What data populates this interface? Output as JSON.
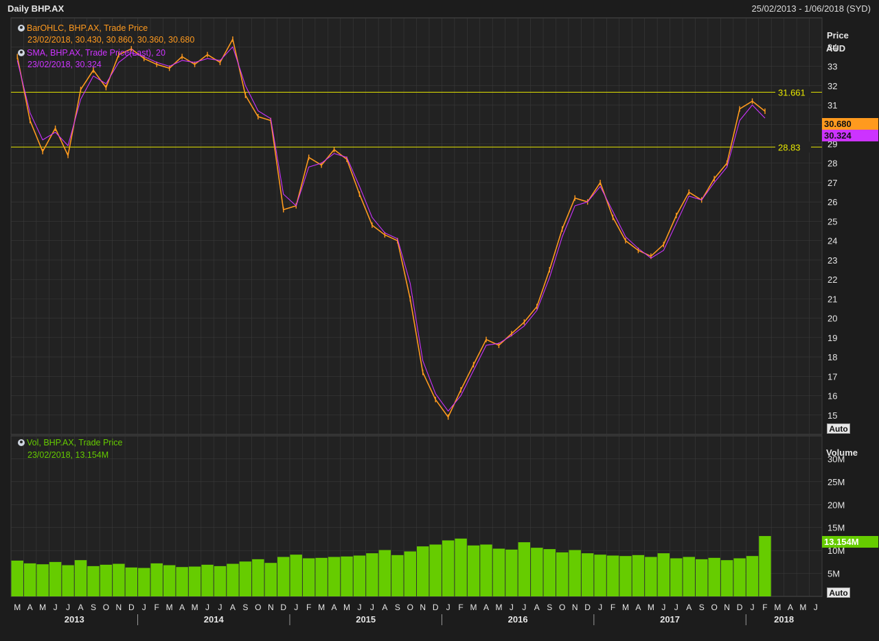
{
  "header": {
    "title": "Daily BHP.AX",
    "range": "25/02/2013 - 1/06/2018 (SYD)"
  },
  "colors": {
    "background": "#1c1c1c",
    "plot": "#222222",
    "grid": "#3a3a3a",
    "price": "#ff9a1e",
    "sma": "#cc33ff",
    "volume": "#66cc00",
    "hline": "#e8e800",
    "text": "#dcdcdc"
  },
  "legend": {
    "ohlc_title": "BarOHLC, BHP.AX, Trade Price",
    "ohlc_values": "23/02/2018, 30.430, 30.860, 30.360, 30.680",
    "sma_title": "SMA, BHP.AX, Trade Price(Last),  20",
    "sma_values": "23/02/2018, 30.324",
    "vol_title": "Vol, BHP.AX, Trade Price",
    "vol_values": "23/02/2018, 13.154M"
  },
  "price_axis": {
    "title": "Price",
    "unit": "AUD",
    "auto_label": "Auto"
  },
  "volume_axis": {
    "title": "Volume",
    "auto_label": "Auto"
  },
  "badges": {
    "last_price": "30.680",
    "sma": "30.324",
    "last_volume": "13.154M"
  },
  "hlines": [
    {
      "label": "31.661",
      "value": 31.661
    },
    {
      "label": "28.83",
      "value": 28.83
    }
  ],
  "chart_data": [
    {
      "type": "line",
      "x_unit": "month",
      "x": [
        "2013-03",
        "2013-04",
        "2013-05",
        "2013-06",
        "2013-07",
        "2013-08",
        "2013-09",
        "2013-10",
        "2013-11",
        "2013-12",
        "2014-01",
        "2014-02",
        "2014-03",
        "2014-04",
        "2014-05",
        "2014-06",
        "2014-07",
        "2014-08",
        "2014-09",
        "2014-10",
        "2014-11",
        "2014-12",
        "2015-01",
        "2015-02",
        "2015-03",
        "2015-04",
        "2015-05",
        "2015-06",
        "2015-07",
        "2015-08",
        "2015-09",
        "2015-10",
        "2015-11",
        "2015-12",
        "2016-01",
        "2016-02",
        "2016-03",
        "2016-04",
        "2016-05",
        "2016-06",
        "2016-07",
        "2016-08",
        "2016-09",
        "2016-10",
        "2016-11",
        "2016-12",
        "2017-01",
        "2017-02",
        "2017-03",
        "2017-04",
        "2017-05",
        "2017-06",
        "2017-07",
        "2017-08",
        "2017-09",
        "2017-10",
        "2017-11",
        "2017-12",
        "2018-01",
        "2018-02"
      ],
      "series": [
        {
          "values": [
            33.5,
            30.2,
            28.6,
            29.8,
            28.4,
            31.8,
            32.8,
            31.9,
            33.6,
            33.9,
            33.4,
            33.1,
            32.9,
            33.5,
            33.1,
            33.6,
            33.2,
            34.4,
            31.5,
            30.4,
            30.2,
            25.6,
            25.8,
            28.3,
            27.9,
            28.7,
            28.2,
            26.4,
            24.8,
            24.3,
            24.0,
            21.0,
            17.2,
            15.8,
            14.9,
            16.3,
            17.6,
            18.9,
            18.6,
            19.2,
            19.8,
            20.6,
            22.5,
            24.6,
            26.2,
            26.0,
            27.0,
            25.2,
            24.0,
            23.5,
            23.2,
            23.8,
            25.3,
            26.5,
            26.1,
            27.2,
            28.0,
            30.8,
            31.2,
            30.68
          ]
        },
        {
          "values": [
            33.3,
            30.6,
            29.2,
            29.6,
            28.9,
            31.3,
            32.5,
            32.1,
            33.2,
            33.7,
            33.5,
            33.2,
            33.0,
            33.3,
            33.2,
            33.4,
            33.3,
            34.0,
            32.0,
            30.7,
            30.3,
            26.4,
            25.8,
            27.8,
            28.0,
            28.5,
            28.3,
            26.8,
            25.2,
            24.4,
            24.1,
            21.8,
            17.8,
            16.1,
            15.2,
            16.0,
            17.3,
            18.6,
            18.7,
            19.1,
            19.6,
            20.4,
            22.1,
            24.2,
            25.8,
            26.0,
            26.8,
            25.5,
            24.2,
            23.6,
            23.1,
            23.5,
            24.9,
            26.3,
            26.1,
            27.0,
            27.8,
            30.2,
            31.0,
            30.324
          ]
        }
      ],
      "ylabel": "Price",
      "ylim": [
        14,
        35.5
      ],
      "ticks": [
        15,
        16,
        17,
        18,
        19,
        20,
        21,
        22,
        23,
        24,
        25,
        26,
        27,
        28,
        29,
        30,
        31,
        32,
        33,
        34
      ],
      "grid": true
    },
    {
      "type": "bar",
      "x_unit": "month",
      "x": [
        "2013-03",
        "2013-04",
        "2013-05",
        "2013-06",
        "2013-07",
        "2013-08",
        "2013-09",
        "2013-10",
        "2013-11",
        "2013-12",
        "2014-01",
        "2014-02",
        "2014-03",
        "2014-04",
        "2014-05",
        "2014-06",
        "2014-07",
        "2014-08",
        "2014-09",
        "2014-10",
        "2014-11",
        "2014-12",
        "2015-01",
        "2015-02",
        "2015-03",
        "2015-04",
        "2015-05",
        "2015-06",
        "2015-07",
        "2015-08",
        "2015-09",
        "2015-10",
        "2015-11",
        "2015-12",
        "2016-01",
        "2016-02",
        "2016-03",
        "2016-04",
        "2016-05",
        "2016-06",
        "2016-07",
        "2016-08",
        "2016-09",
        "2016-10",
        "2016-11",
        "2016-12",
        "2017-01",
        "2017-02",
        "2017-03",
        "2017-04",
        "2017-05",
        "2017-06",
        "2017-07",
        "2017-08",
        "2017-09",
        "2017-10",
        "2017-11",
        "2017-12",
        "2018-01",
        "2018-02"
      ],
      "values": [
        7.8,
        7.2,
        7.0,
        7.5,
        6.8,
        7.9,
        6.6,
        6.9,
        7.1,
        6.3,
        6.2,
        7.2,
        6.8,
        6.4,
        6.5,
        6.9,
        6.6,
        7.1,
        7.6,
        8.1,
        7.3,
        8.6,
        9.1,
        8.3,
        8.4,
        8.6,
        8.7,
        8.9,
        9.4,
        10.1,
        9.0,
        9.8,
        10.9,
        11.3,
        12.2,
        12.6,
        11.1,
        11.3,
        10.4,
        10.2,
        11.8,
        10.6,
        10.3,
        9.6,
        10.1,
        9.4,
        9.1,
        8.9,
        8.8,
        9.0,
        8.6,
        9.4,
        8.3,
        8.6,
        8.1,
        8.4,
        7.9,
        8.3,
        8.8,
        13.154
      ],
      "ylabel": "Volume",
      "ylim": [
        0,
        35
      ],
      "ticks": [
        "5M",
        "10M",
        "15M",
        "20M",
        "25M",
        "30M"
      ],
      "grid": true
    }
  ],
  "x_axis": {
    "month_letters": [
      "M",
      "A",
      "M",
      "J",
      "J",
      "A",
      "S",
      "O",
      "N",
      "D",
      "J",
      "F",
      "M",
      "A",
      "M",
      "J",
      "J",
      "A",
      "S",
      "O",
      "N",
      "D",
      "J",
      "F",
      "M",
      "A",
      "M",
      "J",
      "J",
      "A",
      "S",
      "O",
      "N",
      "D",
      "J",
      "F",
      "M",
      "A",
      "M",
      "J",
      "J",
      "A",
      "S",
      "O",
      "N",
      "D",
      "J",
      "F",
      "M",
      "A",
      "M",
      "J",
      "J",
      "A",
      "S",
      "O",
      "N",
      "D",
      "J",
      "F",
      "M",
      "A",
      "M",
      "J"
    ],
    "years": [
      "2013",
      "2014",
      "2015",
      "2016",
      "2017",
      "2018"
    ]
  }
}
